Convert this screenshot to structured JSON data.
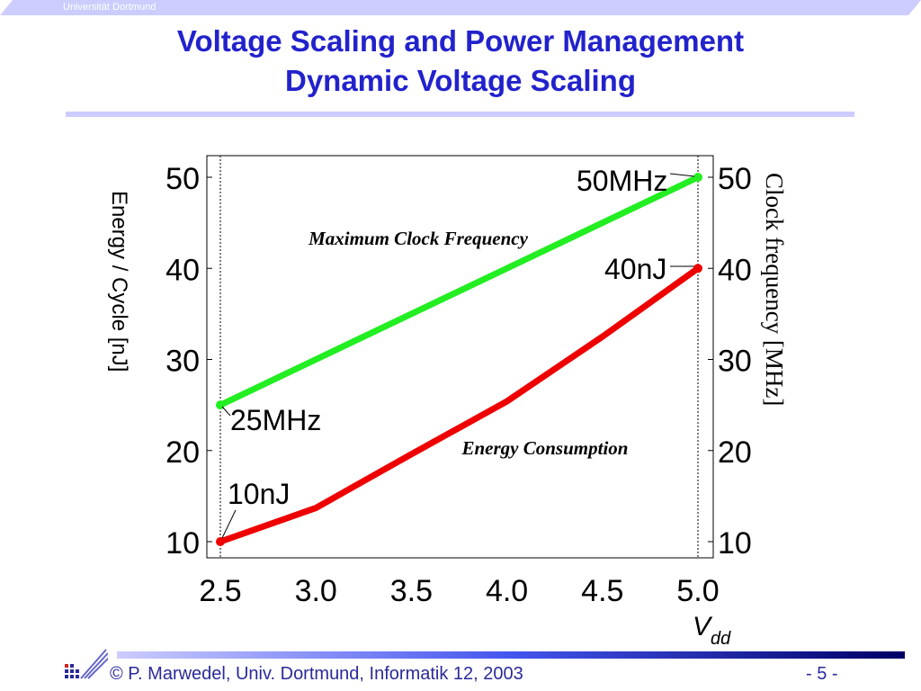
{
  "header": {
    "university": "Universität Dortmund",
    "title_line1": "Voltage Scaling and Power Management",
    "title_line2": "Dynamic Voltage Scaling"
  },
  "footer": {
    "text": "© P. Marwedel, Univ. Dortmund, Informatik 12, 2003",
    "page": "- 5 -"
  },
  "colors": {
    "title": "#2222cc",
    "energy": "#ee0000",
    "frequency": "#22ee22"
  },
  "chart_data": {
    "type": "line",
    "xlabel": "V",
    "xlabel_sub": "dd",
    "ylabel_left": "Energy / Cycle [nJ]",
    "ylabel_right": "Clock frequency   [MHz]",
    "xlim": [
      2.5,
      5.0
    ],
    "ylim": [
      10,
      50
    ],
    "xticks": [
      "2.5",
      "3.0",
      "3.5",
      "4.0",
      "4.5",
      "5.0"
    ],
    "yticks": [
      "10",
      "20",
      "30",
      "40",
      "50"
    ],
    "x": [
      2.5,
      3.0,
      3.5,
      4.0,
      4.5,
      5.0
    ],
    "series": [
      {
        "name": "Maximum Clock Frequency",
        "axis": "right",
        "values": [
          25,
          30,
          35,
          40,
          45,
          50
        ]
      },
      {
        "name": "Energy Consumption",
        "axis": "left",
        "values": [
          10,
          13.7,
          19.6,
          25.4,
          32.5,
          40
        ]
      }
    ],
    "annotations": [
      "50MHz",
      "25MHz",
      "40nJ",
      "10nJ"
    ]
  }
}
